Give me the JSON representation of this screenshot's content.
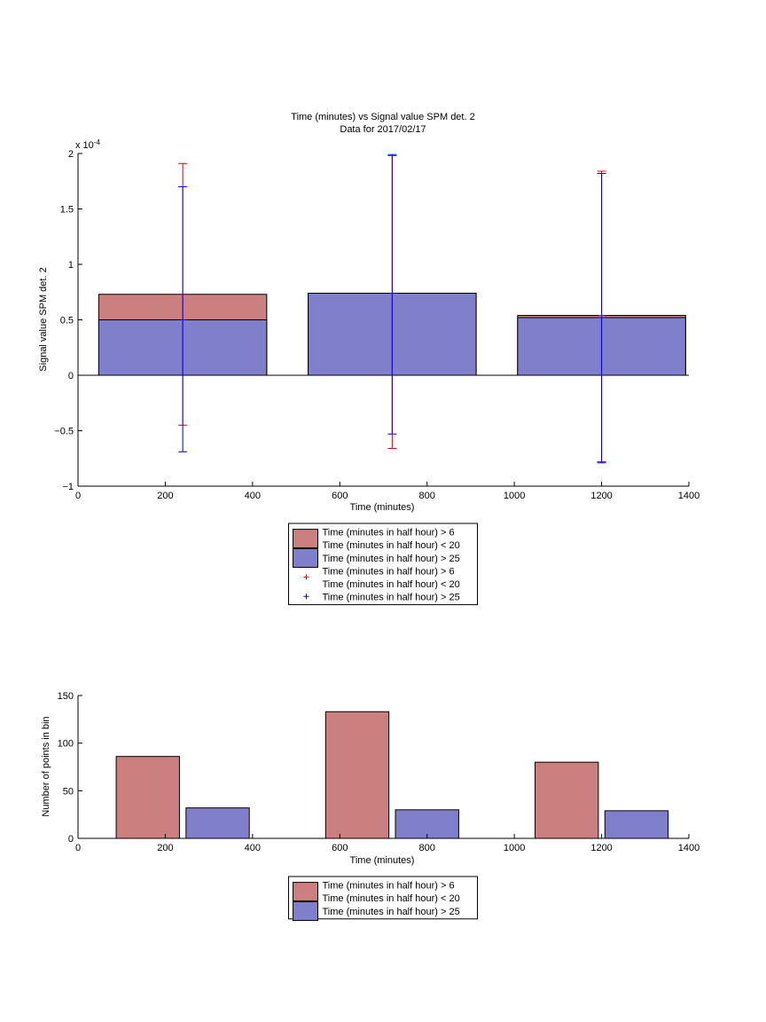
{
  "colors": {
    "red": "#cc7f7f",
    "blue": "#7f7fcc",
    "red_err": "#dd0000",
    "blue_err": "#0000ee"
  },
  "chart_data": [
    {
      "type": "bar",
      "title": "Time (minutes) vs Signal value SPM det. 2",
      "subtitle": "Data for 2017/02/17",
      "xlabel": "Time (minutes)",
      "ylabel": "Signal value SPM det. 2",
      "y_exponent_label": "x 10",
      "y_exponent_power": "-4",
      "xlim": [
        0,
        1400
      ],
      "ylim": [
        -1,
        2
      ],
      "x_ticks": [
        "0",
        "200",
        "400",
        "600",
        "800",
        "1000",
        "1200",
        "1400"
      ],
      "y_ticks": [
        "−1",
        "−0.5",
        "0",
        "0.5",
        "1",
        "1.5",
        "2"
      ],
      "bar_x": [
        240,
        720,
        1200
      ],
      "bar_width": 385,
      "series": [
        {
          "name": "Time (minutes in half hour) > 6\nTime (minutes in half hour) < 20",
          "values": [
            0.73,
            0.74,
            0.54
          ]
        },
        {
          "name": "Time (minutes in half hour) > 25",
          "values": [
            0.5,
            0.74,
            0.52
          ]
        }
      ],
      "error_bars": [
        {
          "name": "Time (minutes in half hour) > 6\nTime (minutes in half hour) < 20",
          "x": [
            240,
            720,
            1200
          ],
          "low": [
            -0.45,
            -0.66,
            -0.78
          ],
          "high": [
            1.91,
            1.98,
            1.84
          ]
        },
        {
          "name": "Time (minutes in half hour) > 25",
          "x": [
            240,
            720,
            1200
          ],
          "low": [
            -0.69,
            -0.53,
            -0.79
          ],
          "high": [
            1.7,
            1.99,
            1.82
          ]
        }
      ],
      "legend": [
        {
          "kind": "patch",
          "color_key": "red",
          "lines": [
            "Time (minutes in half hour) > 6",
            "Time (minutes in half hour) < 20"
          ]
        },
        {
          "kind": "patch",
          "color_key": "blue",
          "lines": [
            "Time (minutes in half hour) > 25"
          ]
        },
        {
          "kind": "marker",
          "color_key": "red_err",
          "lines": [
            "Time (minutes in half hour) > 6",
            "Time (minutes in half hour) < 20"
          ]
        },
        {
          "kind": "marker",
          "color_key": "blue_err",
          "lines": [
            "Time (minutes in half hour) > 25"
          ]
        }
      ],
      "legend_placement": "below"
    },
    {
      "type": "bar",
      "title": "",
      "xlabel": "Time (minutes)",
      "ylabel": "Number of points in bin",
      "xlim": [
        0,
        1400
      ],
      "ylim": [
        0,
        150
      ],
      "x_ticks": [
        "0",
        "200",
        "400",
        "600",
        "800",
        "1000",
        "1200",
        "1400"
      ],
      "y_ticks": [
        "0",
        "50",
        "100",
        "150"
      ],
      "bars": [
        {
          "series": 0,
          "x": 160,
          "width": 145,
          "value": 86
        },
        {
          "series": 1,
          "x": 320,
          "width": 145,
          "value": 32
        },
        {
          "series": 0,
          "x": 640,
          "width": 145,
          "value": 133
        },
        {
          "series": 1,
          "x": 800,
          "width": 145,
          "value": 30
        },
        {
          "series": 0,
          "x": 1120,
          "width": 145,
          "value": 80
        },
        {
          "series": 1,
          "x": 1280,
          "width": 145,
          "value": 29
        }
      ],
      "series": [
        {
          "name": "Time (minutes in half hour) > 6\nTime (minutes in half hour) < 20",
          "color_key": "red"
        },
        {
          "name": "Time (minutes in half hour) > 25",
          "color_key": "blue"
        }
      ],
      "legend": [
        {
          "kind": "patch",
          "color_key": "red",
          "lines": [
            "Time (minutes in half hour) > 6",
            "Time (minutes in half hour) < 20"
          ]
        },
        {
          "kind": "patch",
          "color_key": "blue",
          "lines": [
            "Time (minutes in half hour) > 25"
          ]
        }
      ],
      "legend_placement": "below"
    }
  ]
}
